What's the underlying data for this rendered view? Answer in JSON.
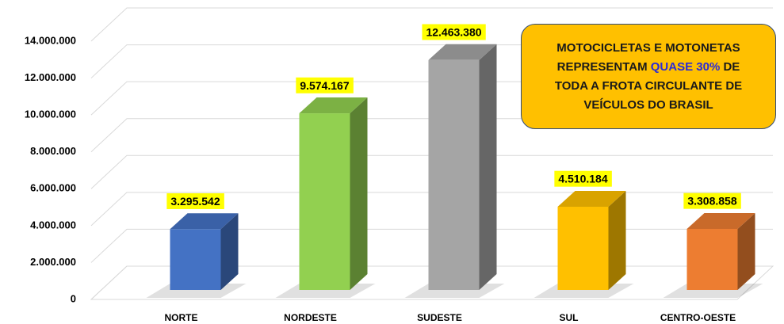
{
  "chart_data": {
    "type": "bar3d",
    "categories": [
      "NORTE",
      "NORDESTE",
      "SUDESTE",
      "SUL",
      "CENTRO-OESTE"
    ],
    "values": [
      3295542,
      9574167,
      12463380,
      4510184,
      3308858
    ],
    "value_labels": [
      "3.295.542",
      "9.574.167",
      "12.463.380",
      "4.510.184",
      "3.308.858"
    ],
    "colors": [
      "#4472c4",
      "#92d050",
      "#a5a5a5",
      "#ffc000",
      "#ed7d31"
    ],
    "ylim": [
      0,
      14000000
    ],
    "yticks": [
      0,
      {
        "value": 2000000,
        "label": "2.000.000"
      },
      {
        "value": 4000000,
        "label": "4.000.000"
      },
      {
        "value": 6000000,
        "label": "6.000.000"
      },
      {
        "value": 8000000,
        "label": "8.000.000"
      },
      {
        "value": 10000000,
        "label": "10.000.000"
      },
      {
        "value": 12000000,
        "label": "12.000.000"
      },
      {
        "value": 14000000,
        "label": "14.000.000"
      }
    ],
    "grid": true,
    "annotation": [
      "MOTOCICLETAS E MOTONETAS REPRESENTAM ",
      "QUASE 30%",
      " DE TODA A FROTA CIRCULANTE DE VEÍCULOS DO BRASIL"
    ]
  }
}
